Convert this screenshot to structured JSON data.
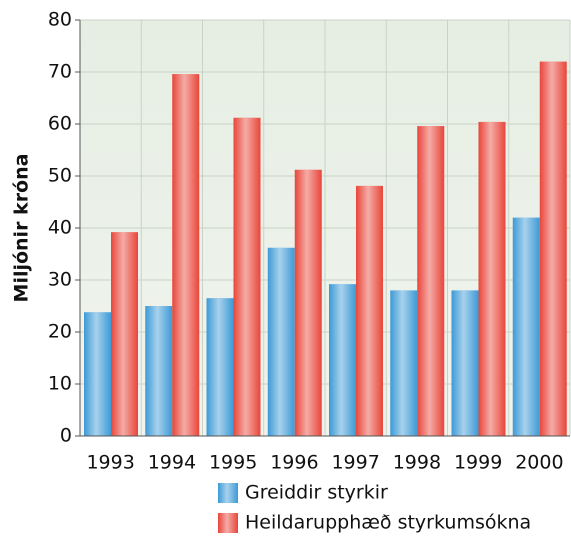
{
  "chart_data": {
    "type": "bar",
    "y_label": "Miljónir króna",
    "categories": [
      "1993",
      "1994",
      "1995",
      "1996",
      "1997",
      "1998",
      "1999",
      "2000"
    ],
    "series": [
      {
        "name": "Greiddir styrkir",
        "color": "#3d9ad6",
        "values": [
          23.8,
          25,
          26.5,
          36.2,
          29.2,
          28,
          28,
          42
        ]
      },
      {
        "name": "Heildarupphæð styrkumsókna",
        "color": "#e8463a",
        "values": [
          39.2,
          69.6,
          61.2,
          51.2,
          48.1,
          59.6,
          60.4,
          72
        ]
      }
    ],
    "ylim": [
      0,
      80
    ],
    "yticks": [
      0,
      10,
      20,
      30,
      40,
      50,
      60,
      70,
      80
    ],
    "grid": true
  }
}
